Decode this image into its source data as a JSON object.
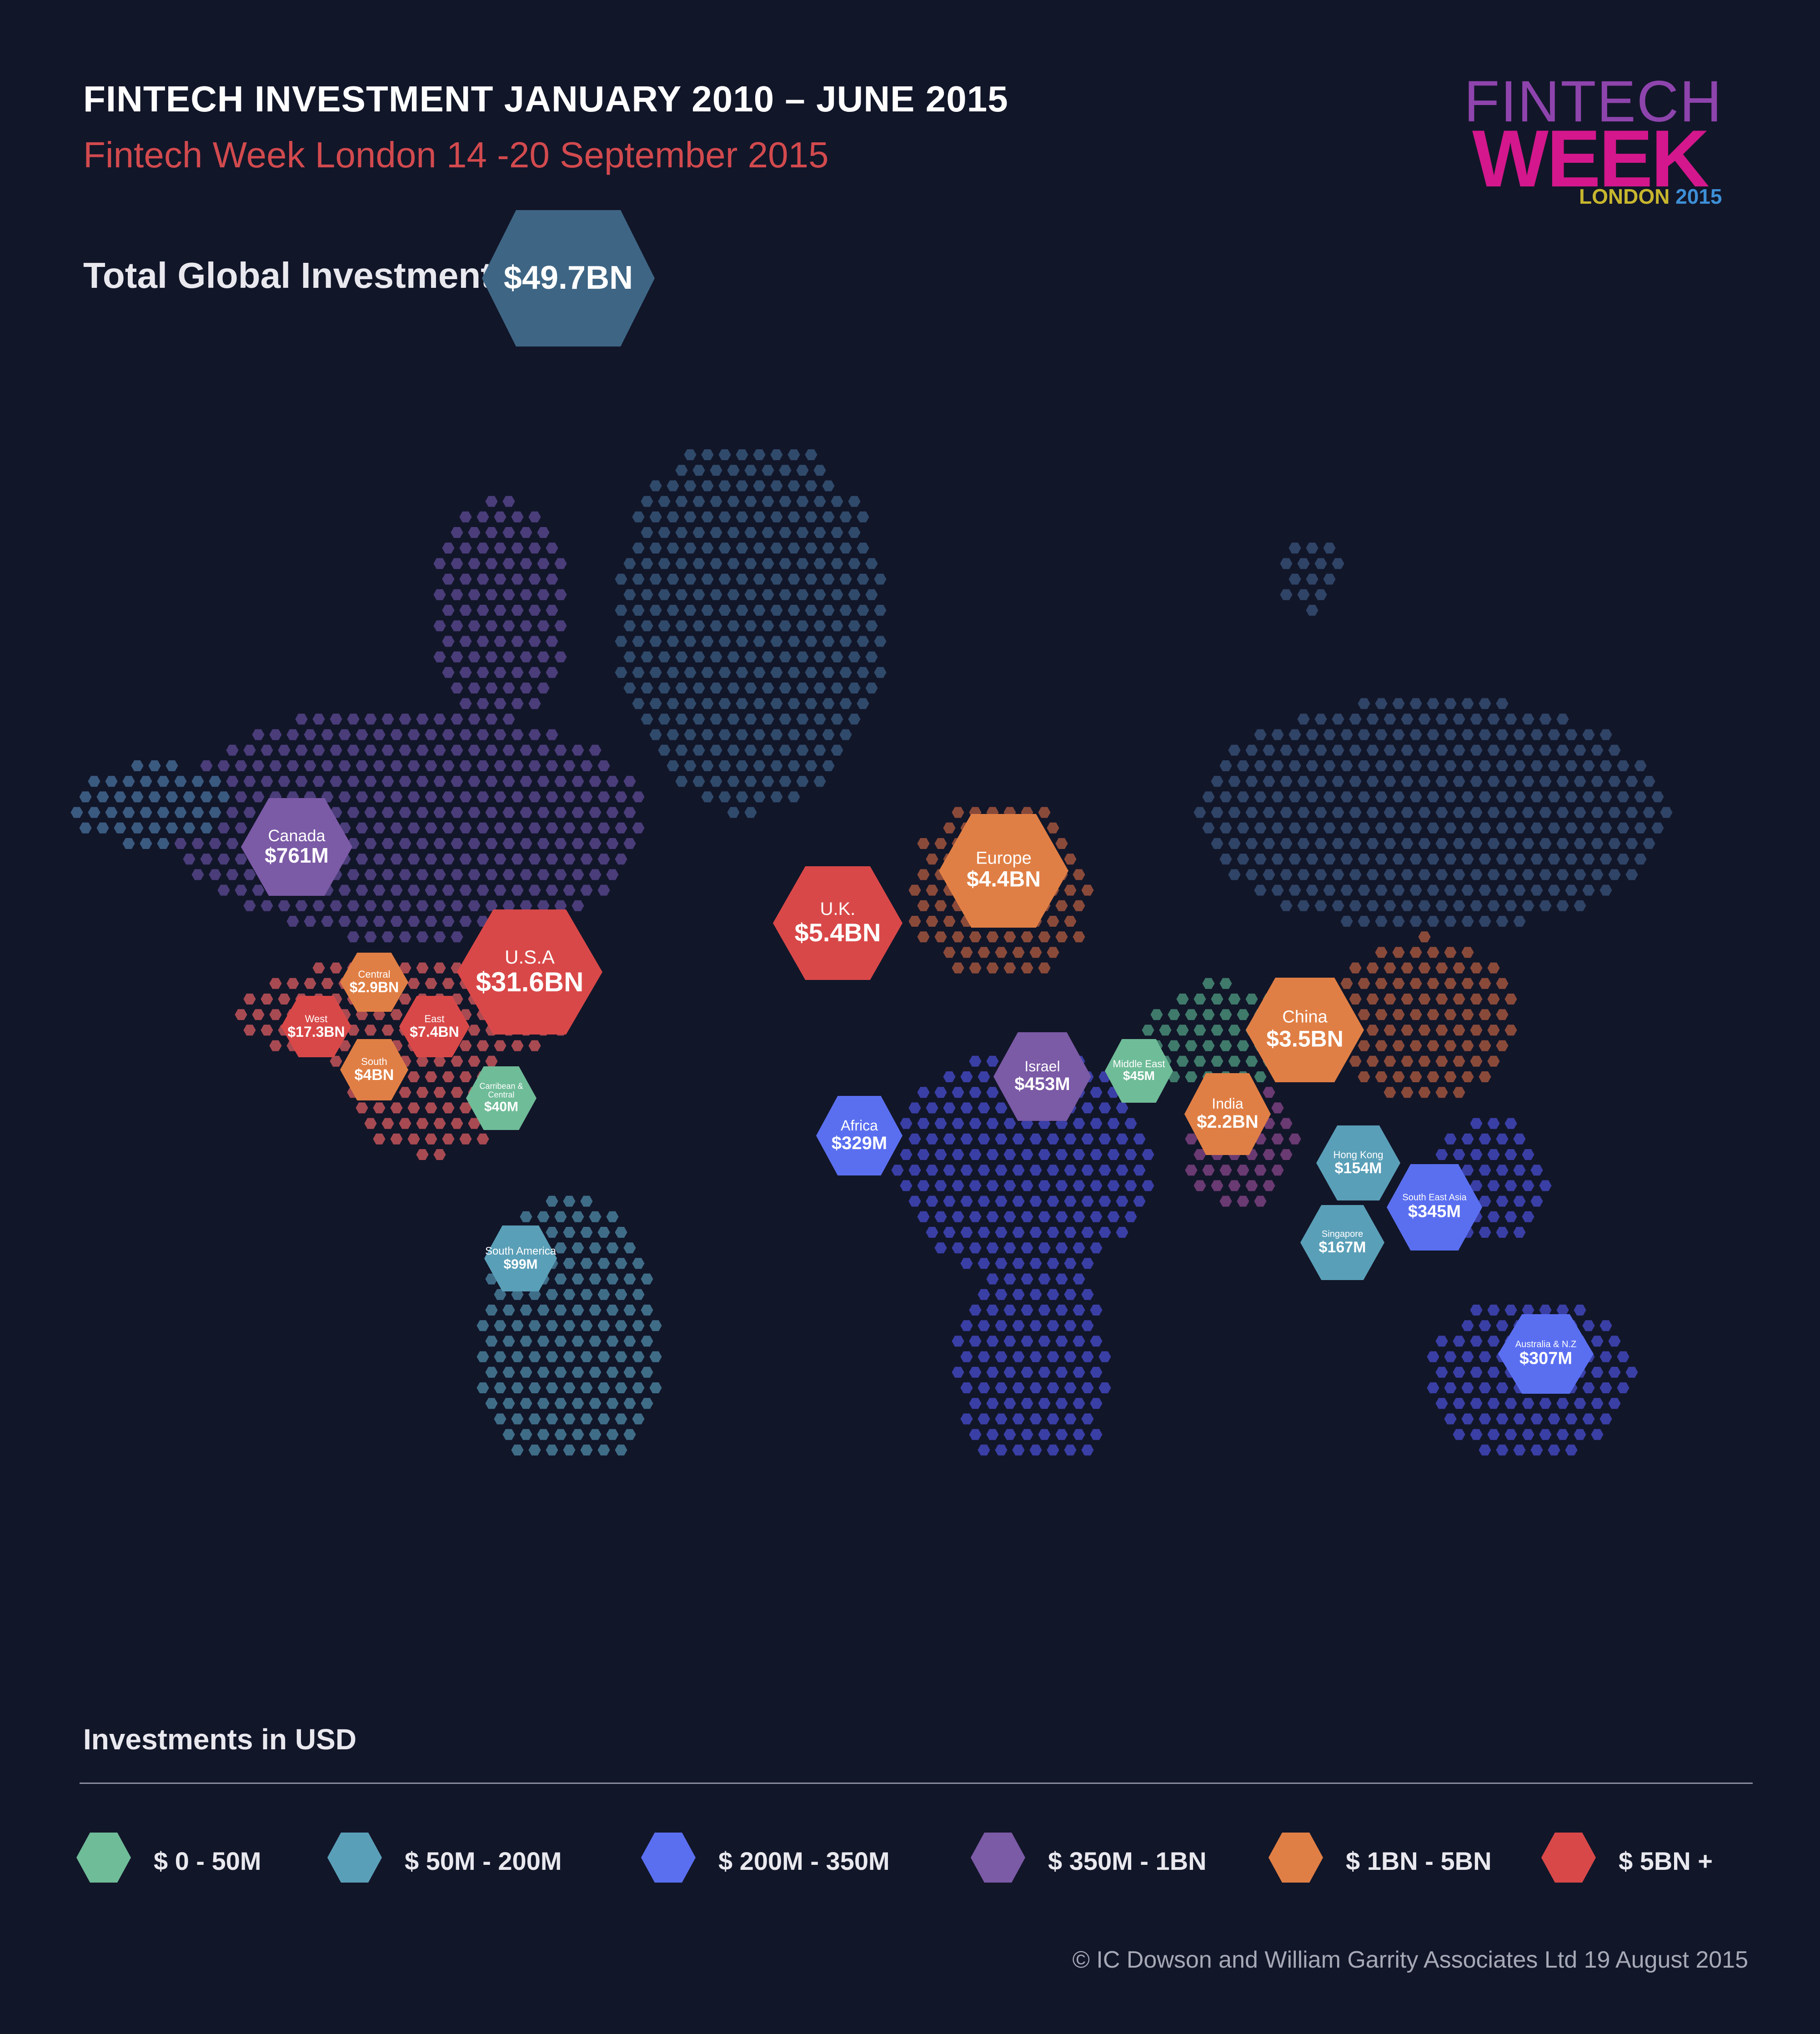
{
  "header": {
    "title": "FINTECH INVESTMENT JANUARY 2010 – JUNE 2015",
    "subtitle": "Fintech Week London  14 -20 September 2015"
  },
  "logo": {
    "line1": "FINTECH",
    "line2": "WEEK",
    "city": "LONDON",
    "year": "2015"
  },
  "total": {
    "label": "Total Global Investment",
    "value": "$49.7BN"
  },
  "colors": {
    "background": "#121629",
    "tier_0_50m": "#6fbc98",
    "tier_50m_200m": "#5a9fb8",
    "tier_200m_350m": "#5a6ff0",
    "tier_350m_1bn": "#7b5aa6",
    "tier_1bn_5bn": "#e07f45",
    "tier_5bn_plus": "#d94848"
  },
  "regions": [
    {
      "id": "usa",
      "label": "U.S.A",
      "value": "$31.6BN",
      "tier": "tier_5bn_plus"
    },
    {
      "id": "usa-west",
      "label": "West",
      "value": "$17.3BN",
      "tier": "tier_5bn_plus"
    },
    {
      "id": "usa-east",
      "label": "East",
      "value": "$7.4BN",
      "tier": "tier_5bn_plus"
    },
    {
      "id": "usa-south",
      "label": "South",
      "value": "$4BN",
      "tier": "tier_1bn_5bn"
    },
    {
      "id": "usa-central",
      "label": "Central",
      "value": "$2.9BN",
      "tier": "tier_1bn_5bn"
    },
    {
      "id": "uk",
      "label": "U.K.",
      "value": "$5.4BN",
      "tier": "tier_5bn_plus"
    },
    {
      "id": "europe",
      "label": "Europe",
      "value": "$4.4BN",
      "tier": "tier_1bn_5bn"
    },
    {
      "id": "china",
      "label": "China",
      "value": "$3.5BN",
      "tier": "tier_1bn_5bn"
    },
    {
      "id": "india",
      "label": "India",
      "value": "$2.2BN",
      "tier": "tier_1bn_5bn"
    },
    {
      "id": "canada",
      "label": "Canada",
      "value": "$761M",
      "tier": "tier_350m_1bn"
    },
    {
      "id": "israel",
      "label": "Israel",
      "value": "$453M",
      "tier": "tier_350m_1bn"
    },
    {
      "id": "south-east-asia",
      "label": "South East Asia",
      "value": "$345M",
      "tier": "tier_200m_350m"
    },
    {
      "id": "africa",
      "label": "Africa",
      "value": "$329M",
      "tier": "tier_200m_350m"
    },
    {
      "id": "australia-nz",
      "label": "Australia & N.Z",
      "value": "$307M",
      "tier": "tier_200m_350m"
    },
    {
      "id": "singapore",
      "label": "Singapore",
      "value": "$167M",
      "tier": "tier_50m_200m"
    },
    {
      "id": "hong-kong",
      "label": "Hong Kong",
      "value": "$154M",
      "tier": "tier_50m_200m"
    },
    {
      "id": "south-america",
      "label": "South America",
      "value": "$99M",
      "tier": "tier_50m_200m"
    },
    {
      "id": "middle-east",
      "label": "Middle East",
      "value": "$45M",
      "tier": "tier_0_50m"
    },
    {
      "id": "caribbean-central",
      "label": "Carribean & Central",
      "value": "$40M",
      "tier": "tier_0_50m"
    }
  ],
  "legend": {
    "title": "Investments in USD",
    "items": [
      {
        "label": "$ 0 - 50M",
        "tier": "tier_0_50m"
      },
      {
        "label": "$  50M - 200M",
        "tier": "tier_50m_200m"
      },
      {
        "label": "$ 200M - 350M",
        "tier": "tier_200m_350m"
      },
      {
        "label": "$ 350M - 1BN",
        "tier": "tier_350m_1bn"
      },
      {
        "label": "$ 1BN - 5BN",
        "tier": "tier_1bn_5bn"
      },
      {
        "label": "$  5BN +",
        "tier": "tier_5bn_plus"
      }
    ]
  },
  "copyright": "© IC Dowson and William Garrity Associates Ltd 19 August 2015"
}
